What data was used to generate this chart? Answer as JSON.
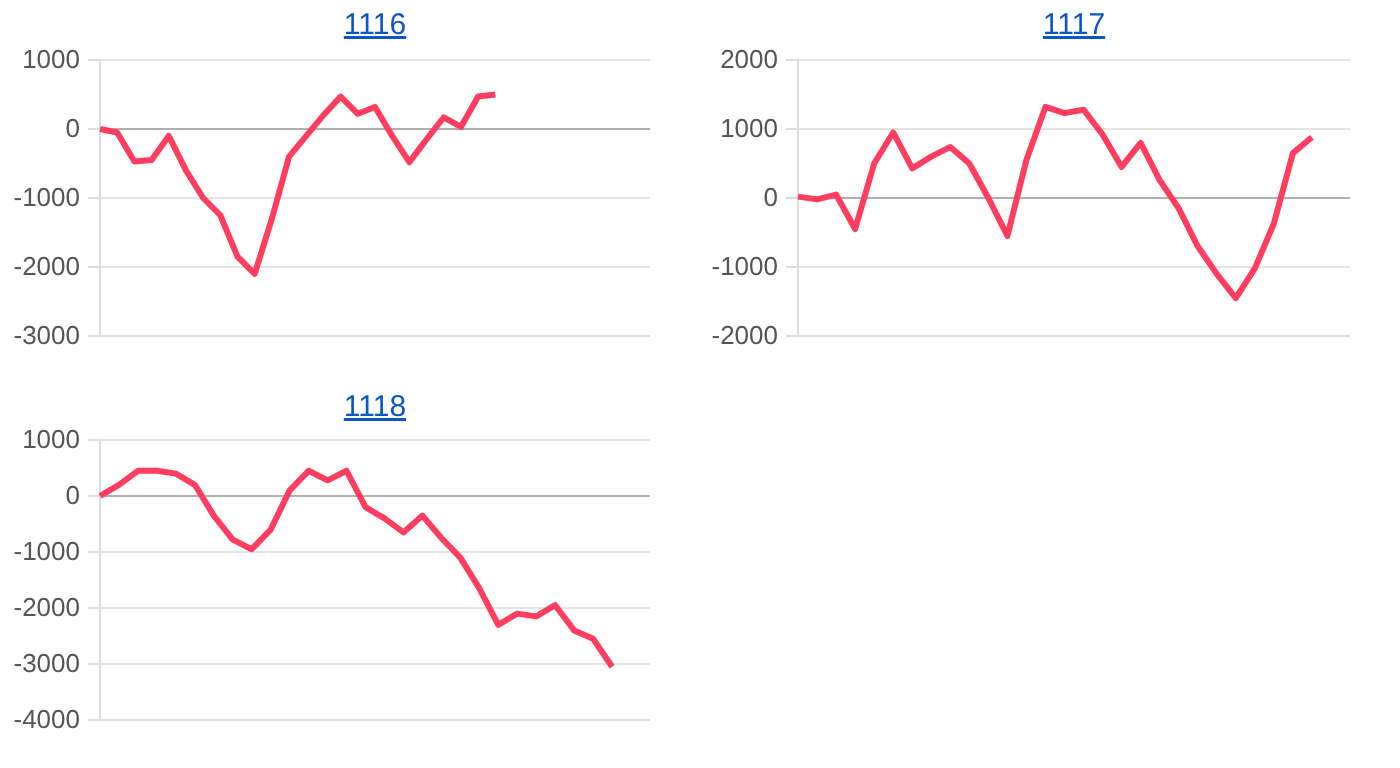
{
  "chart_data": [
    {
      "type": "line",
      "title": "1116",
      "categories": [
        null,
        null,
        null,
        null,
        null,
        null,
        null,
        null,
        null,
        null,
        null,
        null,
        null,
        null,
        null,
        null,
        null,
        null,
        null,
        null,
        null,
        null,
        null,
        null,
        null,
        null,
        null,
        null,
        null,
        null,
        null,
        null,
        null
      ],
      "series": [
        {
          "color": "#ff3d5f",
          "values": [
            0,
            -50,
            -470,
            -450,
            -100,
            -600,
            -1000,
            -1250,
            -1850,
            -2100,
            -1300,
            -400,
            -100,
            200,
            470,
            220,
            320,
            -100,
            -480,
            -150,
            170,
            30,
            470,
            500,
            null,
            null,
            null,
            null,
            null,
            null,
            null,
            null,
            null
          ]
        }
      ],
      "ylim": [
        -3000,
        1000
      ],
      "yticks": [
        -3000,
        -2000,
        -1000,
        0,
        1000
      ],
      "grid": "y",
      "marker": "none"
    },
    {
      "type": "line",
      "title": "1117",
      "categories": [
        null,
        null,
        null,
        null,
        null,
        null,
        null,
        null,
        null,
        null,
        null,
        null,
        null,
        null,
        null,
        null,
        null,
        null,
        null,
        null,
        null,
        null,
        null,
        null,
        null,
        null,
        null,
        null,
        null,
        null
      ],
      "series": [
        {
          "color": "#ff3d5f",
          "values": [
            20,
            -20,
            50,
            -450,
            500,
            950,
            430,
            600,
            740,
            500,
            0,
            -550,
            550,
            1320,
            1230,
            1280,
            920,
            450,
            800,
            260,
            -150,
            -700,
            -1100,
            -1450,
            -1020,
            -370,
            650,
            880,
            null,
            null
          ]
        }
      ],
      "ylim": [
        -2000,
        2000
      ],
      "yticks": [
        -2000,
        -1000,
        0,
        1000,
        2000
      ],
      "grid": "y",
      "marker": "none"
    },
    {
      "type": "line",
      "title": "1118",
      "categories": [
        null,
        null,
        null,
        null,
        null,
        null,
        null,
        null,
        null,
        null,
        null,
        null,
        null,
        null,
        null,
        null,
        null,
        null,
        null,
        null,
        null,
        null,
        null,
        null,
        null,
        null,
        null,
        null,
        null,
        null
      ],
      "series": [
        {
          "color": "#ff3d5f",
          "values": [
            0,
            200,
            450,
            450,
            400,
            200,
            -350,
            -780,
            -950,
            -600,
            100,
            450,
            280,
            450,
            -200,
            -400,
            -650,
            -350,
            -750,
            -1100,
            -1650,
            -2300,
            -2100,
            -2150,
            -1950,
            -2400,
            -2550,
            -3050,
            null,
            null
          ]
        }
      ],
      "ylim": [
        -4000,
        1000
      ],
      "yticks": [
        -4000,
        -3000,
        -2000,
        -1000,
        0,
        1000
      ],
      "grid": "y",
      "marker": "none"
    }
  ]
}
